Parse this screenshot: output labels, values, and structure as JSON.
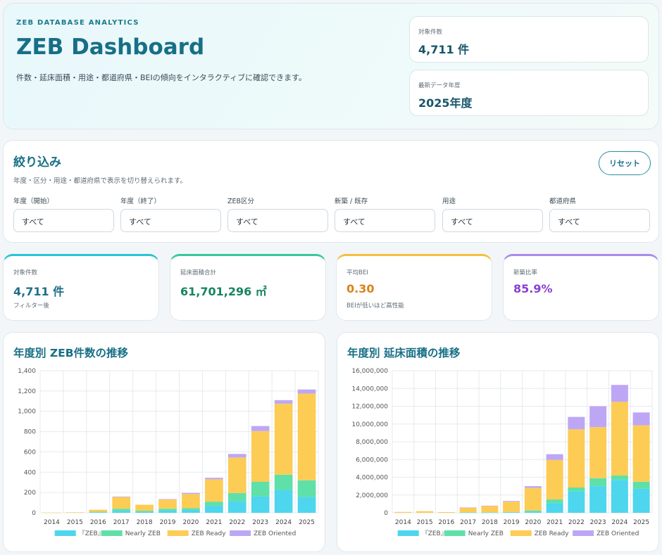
{
  "hero": {
    "eyebrow": "ZEB DATABASE ANALYTICS",
    "title": "ZEB Dashboard",
    "description": "件数・延床面積・用途・都道府県・BEIの傾向をインタラクティブに確認できます。",
    "stats": [
      {
        "label": "対象件数",
        "value": "4,711 件"
      },
      {
        "label": "最新データ年度",
        "value": "2025年度"
      }
    ]
  },
  "filters": {
    "title": "絞り込み",
    "description": "年度・区分・用途・都道府県で表示を切り替えられます。",
    "reset_label": "リセット",
    "fields": [
      {
        "label": "年度（開始）",
        "value": "すべて"
      },
      {
        "label": "年度（終了）",
        "value": "すべて"
      },
      {
        "label": "ZEB区分",
        "value": "すべて"
      },
      {
        "label": "新築 / 既存",
        "value": "すべて"
      },
      {
        "label": "用途",
        "value": "すべて"
      },
      {
        "label": "都道府県",
        "value": "すべて"
      }
    ]
  },
  "kpis": [
    {
      "label": "対象件数",
      "value": "4,711 件",
      "note": "フィルター後",
      "color": "#1f6f88",
      "accent": "#29c3d8"
    },
    {
      "label": "延床面積合計",
      "value": "61,701,296 ㎡",
      "note": "",
      "color": "#16855e",
      "accent": "#36c99a"
    },
    {
      "label": "平均BEI",
      "value": "0.30",
      "note": "BEIが低いほど高性能",
      "color": "#d9821a",
      "accent": "#f3c03e"
    },
    {
      "label": "新築比率",
      "value": "85.9%",
      "note": "",
      "color": "#8a3fd1",
      "accent": "#a98bea"
    }
  ],
  "colors": {
    "zeb": "#4dd6ee",
    "nearly": "#5fe0a8",
    "ready": "#fdcc55",
    "oriented": "#bda7f5"
  },
  "chart_data": [
    {
      "type": "bar",
      "stacked": true,
      "title": "年度別 ZEB件数の推移",
      "categories": [
        "2014",
        "2015",
        "2016",
        "2017",
        "2018",
        "2019",
        "2020",
        "2021",
        "2022",
        "2023",
        "2024",
        "2025"
      ],
      "ylim": [
        0,
        1400
      ],
      "yticks": [
        0,
        200,
        400,
        600,
        800,
        1000,
        1200,
        1400
      ],
      "ytick_labels": [
        "0",
        "200",
        "400",
        "600",
        "800",
        "1,000",
        "1,200",
        "1,400"
      ],
      "grid": true,
      "legend": "bottom",
      "series": [
        {
          "name": "『ZEB』",
          "color": "#4dd6ee",
          "values": [
            0,
            0,
            5,
            20,
            10,
            25,
            30,
            70,
            115,
            160,
            225,
            155
          ]
        },
        {
          "name": "Nearly ZEB",
          "color": "#5fe0a8",
          "values": [
            0,
            0,
            5,
            20,
            10,
            15,
            15,
            40,
            80,
            145,
            150,
            165
          ]
        },
        {
          "name": "ZEB Ready",
          "color": "#fdcc55",
          "values": [
            2,
            5,
            20,
            115,
            60,
            90,
            140,
            220,
            350,
            500,
            700,
            855
          ]
        },
        {
          "name": "ZEB Oriented",
          "color": "#bda7f5",
          "values": [
            0,
            0,
            0,
            5,
            0,
            5,
            10,
            15,
            35,
            50,
            35,
            40
          ]
        }
      ]
    },
    {
      "type": "bar",
      "stacked": true,
      "title": "年度別 延床面積の推移",
      "categories": [
        "2014",
        "2015",
        "2016",
        "2017",
        "2018",
        "2019",
        "2020",
        "2021",
        "2022",
        "2023",
        "2024",
        "2025"
      ],
      "ylim": [
        0,
        16000000
      ],
      "yticks": [
        0,
        2000000,
        4000000,
        6000000,
        8000000,
        10000000,
        12000000,
        14000000,
        16000000
      ],
      "ytick_labels": [
        "0",
        "2,000,000",
        "4,000,000",
        "6,000,000",
        "8,000,000",
        "10,000,000",
        "12,000,000",
        "14,000,000",
        "16,000,000"
      ],
      "grid": true,
      "legend": "bottom",
      "series": [
        {
          "name": "『ZEB』",
          "color": "#4dd6ee",
          "values": [
            0,
            0,
            0,
            20000,
            20000,
            50000,
            150000,
            1100000,
            2400000,
            3000000,
            3700000,
            2700000
          ]
        },
        {
          "name": "Nearly ZEB",
          "color": "#5fe0a8",
          "values": [
            0,
            0,
            0,
            30000,
            30000,
            50000,
            100000,
            400000,
            450000,
            900000,
            500000,
            800000
          ]
        },
        {
          "name": "ZEB Ready",
          "color": "#fdcc55",
          "values": [
            100000,
            180000,
            80000,
            530000,
            720000,
            1150000,
            2550000,
            4450000,
            6550000,
            5750000,
            8300000,
            6350000
          ]
        },
        {
          "name": "ZEB Oriented",
          "color": "#bda7f5",
          "values": [
            0,
            0,
            0,
            20000,
            30000,
            80000,
            200000,
            650000,
            1400000,
            2350000,
            1900000,
            1450000
          ]
        }
      ]
    }
  ]
}
